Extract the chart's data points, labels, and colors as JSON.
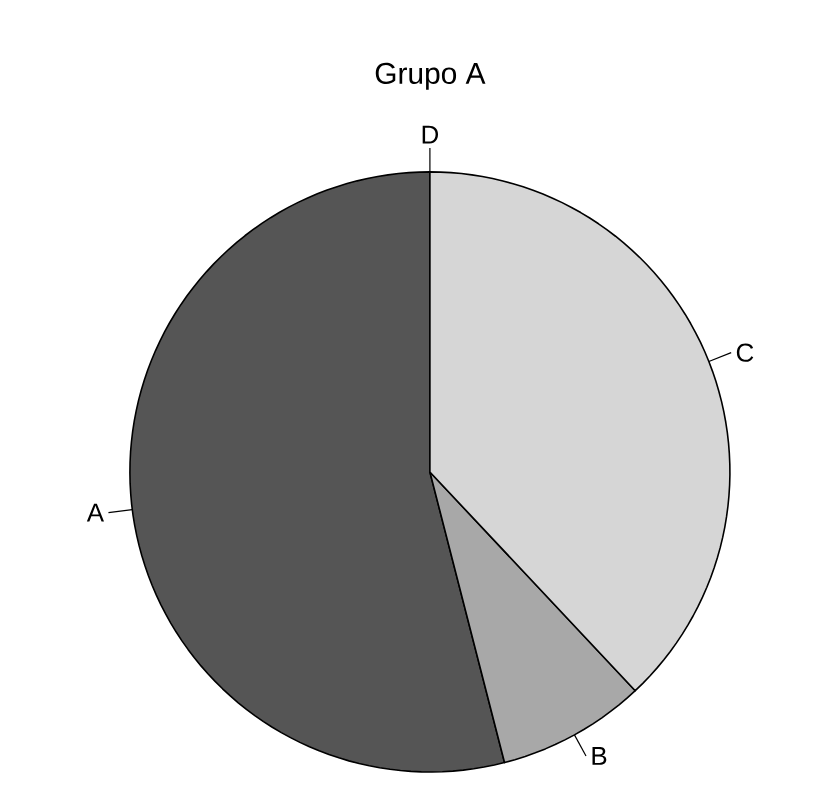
{
  "chart_data": {
    "type": "pie",
    "title": "Grupo A",
    "categories": [
      "A",
      "B",
      "C",
      "D"
    ],
    "values": [
      54,
      8,
      38,
      0
    ],
    "colors": [
      "#555555",
      "#a8a8a8",
      "#d6d6d6",
      "#ffffff"
    ]
  }
}
